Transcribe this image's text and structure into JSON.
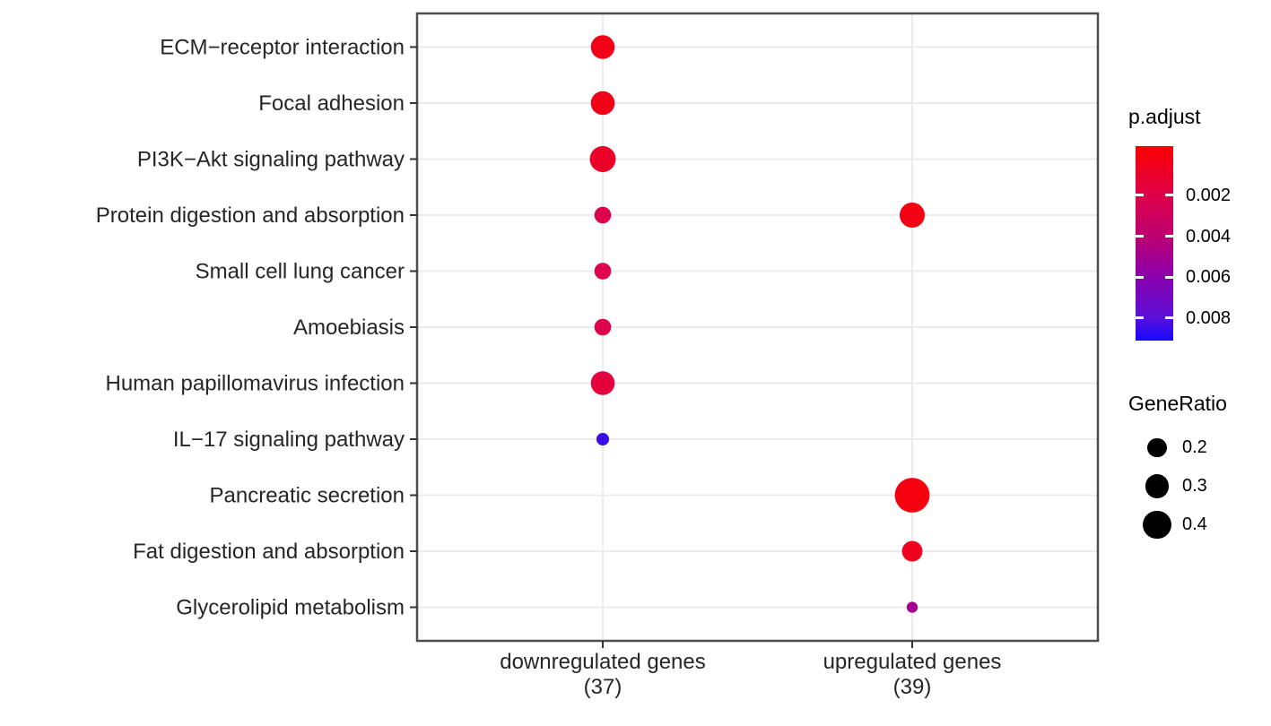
{
  "chart_data": {
    "type": "scatter",
    "subtype": "enrichment-dotplot",
    "x_categories": [
      {
        "label": "downregulated genes",
        "count": "(37)"
      },
      {
        "label": "upregulated genes",
        "count": "(39)"
      }
    ],
    "y_categories": [
      "ECM−receptor interaction",
      "Focal adhesion",
      "PI3K−Akt signaling pathway",
      "Protein digestion and absorption",
      "Small cell lung cancer",
      "Amoebiasis",
      "Human papillomavirus infection",
      "IL−17 signaling pathway",
      "Pancreatic secretion",
      "Fat digestion and absorption",
      "Glycerolipid metabolism"
    ],
    "points": [
      {
        "pathway": "ECM−receptor interaction",
        "group": "downregulated genes",
        "gene_ratio": 0.3,
        "p_adjust": 0.0004
      },
      {
        "pathway": "Focal adhesion",
        "group": "downregulated genes",
        "gene_ratio": 0.3,
        "p_adjust": 0.0004
      },
      {
        "pathway": "PI3K−Akt signaling pathway",
        "group": "downregulated genes",
        "gene_ratio": 0.35,
        "p_adjust": 0.0009
      },
      {
        "pathway": "Protein digestion and absorption",
        "group": "downregulated genes",
        "gene_ratio": 0.16,
        "p_adjust": 0.002
      },
      {
        "pathway": "Protein digestion and absorption",
        "group": "upregulated genes",
        "gene_ratio": 0.33,
        "p_adjust": 0.0003
      },
      {
        "pathway": "Small cell lung cancer",
        "group": "downregulated genes",
        "gene_ratio": 0.16,
        "p_adjust": 0.002
      },
      {
        "pathway": "Amoebiasis",
        "group": "downregulated genes",
        "gene_ratio": 0.16,
        "p_adjust": 0.002
      },
      {
        "pathway": "Human papillomavirus infection",
        "group": "downregulated genes",
        "gene_ratio": 0.3,
        "p_adjust": 0.0016
      },
      {
        "pathway": "IL−17 signaling pathway",
        "group": "downregulated genes",
        "gene_ratio": 0.1,
        "p_adjust": 0.0085
      },
      {
        "pathway": "Pancreatic secretion",
        "group": "upregulated genes",
        "gene_ratio": 0.6,
        "p_adjust": 0.0001
      },
      {
        "pathway": "Fat digestion and absorption",
        "group": "upregulated genes",
        "gene_ratio": 0.23,
        "p_adjust": 0.0006
      },
      {
        "pathway": "Glycerolipid metabolism",
        "group": "upregulated genes",
        "gene_ratio": 0.08,
        "p_adjust": 0.005
      }
    ],
    "legend": {
      "color": {
        "title": "p.adjust",
        "ticks": [
          0.002,
          0.004,
          0.006,
          0.008
        ],
        "tick_labels": [
          "0.002",
          "0.004",
          "0.006",
          "0.008"
        ],
        "gradient_top": "#FB0000",
        "gradient_bottom": "#1408FF",
        "gradient_mid_stops": [
          "#DE0048",
          "#BC0070",
          "#8A00AE",
          "#5A10D8"
        ]
      },
      "size": {
        "title": "GeneRatio",
        "ticks": [
          0.2,
          0.3,
          0.4
        ],
        "tick_labels": [
          "0.2",
          "0.3",
          "0.4"
        ],
        "dot_color": "#000000"
      }
    },
    "style": {
      "panel_border_color": "#4D4D4D",
      "gridline_color": "#EBEBEB",
      "axis_text_color": "#262626",
      "tick_mark_color": "#333333",
      "background": "#FFFFFF"
    },
    "grid": true,
    "legend_position": "right",
    "xlabel": "",
    "ylabel": "",
    "title": ""
  }
}
